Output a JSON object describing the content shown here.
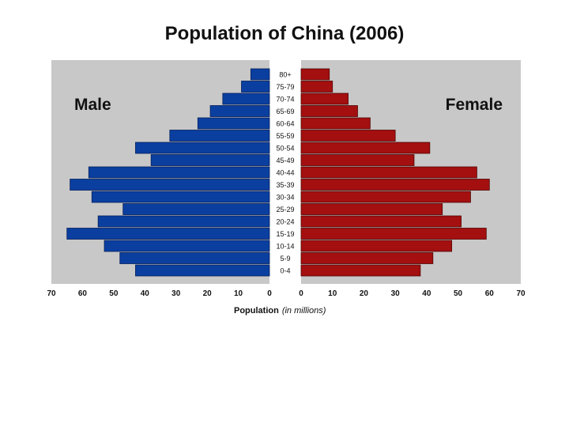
{
  "chart_data": {
    "type": "bar",
    "orientation": "horizontal",
    "title": "Population of China (2006)",
    "xlabel": "Population",
    "xlabel_unit": "(in millions)",
    "categories": [
      "80+",
      "75-79",
      "70-74",
      "65-69",
      "60-64",
      "55-59",
      "50-54",
      "45-49",
      "40-44",
      "35-39",
      "30-34",
      "25-29",
      "20-24",
      "15-19",
      "10-14",
      "5-9",
      "0-4"
    ],
    "series": [
      {
        "name": "Male",
        "color": "#0a3fa0",
        "values": [
          6,
          9,
          15,
          19,
          23,
          32,
          43,
          38,
          58,
          64,
          57,
          47,
          55,
          65,
          53,
          48,
          43
        ]
      },
      {
        "name": "Female",
        "color": "#a40f0f",
        "values": [
          9,
          10,
          15,
          18,
          22,
          30,
          41,
          36,
          56,
          60,
          54,
          45,
          51,
          59,
          48,
          42,
          38
        ]
      }
    ],
    "xlim": [
      0,
      70
    ],
    "ticks": [
      70,
      60,
      50,
      40,
      30,
      20,
      10,
      0
    ],
    "background": "#c8c8c8",
    "grid": false
  }
}
